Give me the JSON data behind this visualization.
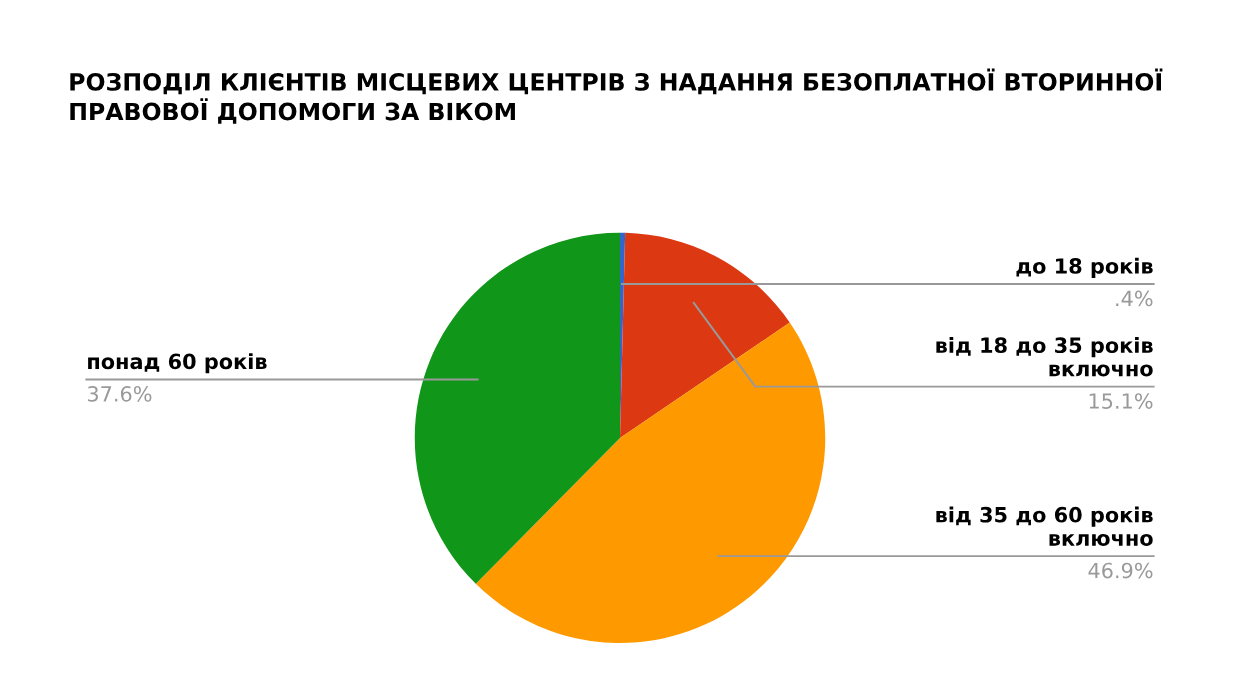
{
  "chart_data": {
    "type": "pie",
    "title": "РОЗПОДІЛ КЛІЄНТІВ МІСЦЕВИХ ЦЕНТРІВ З НАДАННЯ БЕЗОПЛАТНОЇ ВТОРИННОЇ ПРАВОВОЇ ДОПОМОГИ ЗА ВІКОМ",
    "categories": [
      "до 18 років",
      "від 18 до 35 років включно",
      "від 35 до 60 років включно",
      "понад 60 років"
    ],
    "values": [
      0.4,
      15.1,
      46.9,
      37.6
    ],
    "value_labels": [
      ".4%",
      "15.1%",
      "46.9%",
      "37.6%"
    ],
    "colors": [
      "#3366cc",
      "#dc3912",
      "#ff9900",
      "#109618"
    ],
    "legend": false
  }
}
